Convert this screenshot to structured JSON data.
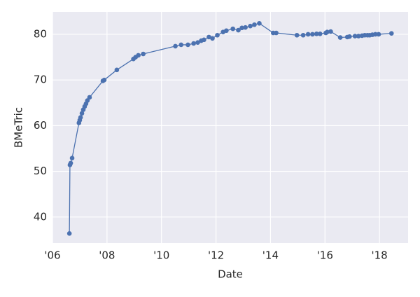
{
  "chart_data": {
    "type": "line",
    "xlabel": "Date",
    "ylabel": "BMeTric",
    "x": [
      2006.62,
      2006.64,
      2006.67,
      2006.72,
      2006.97,
      2007.0,
      2007.03,
      2007.08,
      2007.13,
      2007.18,
      2007.23,
      2007.28,
      2007.36,
      2007.85,
      2007.9,
      2008.36,
      2008.97,
      2009.05,
      2009.15,
      2009.33,
      2010.51,
      2010.72,
      2010.97,
      2011.18,
      2011.33,
      2011.46,
      2011.56,
      2011.74,
      2011.87,
      2012.05,
      2012.26,
      2012.38,
      2012.62,
      2012.82,
      2012.95,
      2013.08,
      2013.26,
      2013.41,
      2013.59,
      2014.1,
      2014.21,
      2014.97,
      2015.2,
      2015.38,
      2015.54,
      2015.69,
      2015.82,
      2016.03,
      2016.08,
      2016.21,
      2016.56,
      2016.82,
      2016.9,
      2017.1,
      2017.23,
      2017.36,
      2017.46,
      2017.56,
      2017.64,
      2017.74,
      2017.85,
      2017.97,
      2018.44
    ],
    "series": [
      {
        "name": "BMeTric",
        "color": "#4c72b0",
        "values": [
          36.4,
          51.4,
          51.8,
          52.9,
          60.6,
          61.2,
          61.8,
          62.7,
          63.5,
          64.2,
          64.8,
          65.5,
          66.2,
          69.8,
          70.0,
          72.2,
          74.6,
          75.0,
          75.4,
          75.7,
          77.4,
          77.7,
          77.7,
          78.0,
          78.2,
          78.6,
          78.8,
          79.4,
          79.1,
          79.8,
          80.5,
          80.8,
          81.2,
          80.9,
          81.4,
          81.5,
          81.8,
          82.1,
          82.4,
          80.3,
          80.3,
          79.8,
          79.8,
          80.0,
          80.0,
          80.1,
          80.1,
          80.3,
          80.5,
          80.6,
          79.3,
          79.4,
          79.5,
          79.6,
          79.6,
          79.7,
          79.8,
          79.8,
          79.8,
          79.9,
          80.0,
          80.0,
          80.2
        ]
      }
    ],
    "xlim": [
      2006,
      2019.05
    ],
    "ylim": [
      34.3,
      84.9
    ],
    "xticks": [
      {
        "value": 2006,
        "label": "'06"
      },
      {
        "value": 2008,
        "label": "'08"
      },
      {
        "value": 2010,
        "label": "'10"
      },
      {
        "value": 2012,
        "label": "'12"
      },
      {
        "value": 2014,
        "label": "'14"
      },
      {
        "value": 2016,
        "label": "'16"
      },
      {
        "value": 2018,
        "label": "'18"
      }
    ],
    "yticks": [
      40,
      50,
      60,
      70,
      80
    ],
    "grid": true
  }
}
